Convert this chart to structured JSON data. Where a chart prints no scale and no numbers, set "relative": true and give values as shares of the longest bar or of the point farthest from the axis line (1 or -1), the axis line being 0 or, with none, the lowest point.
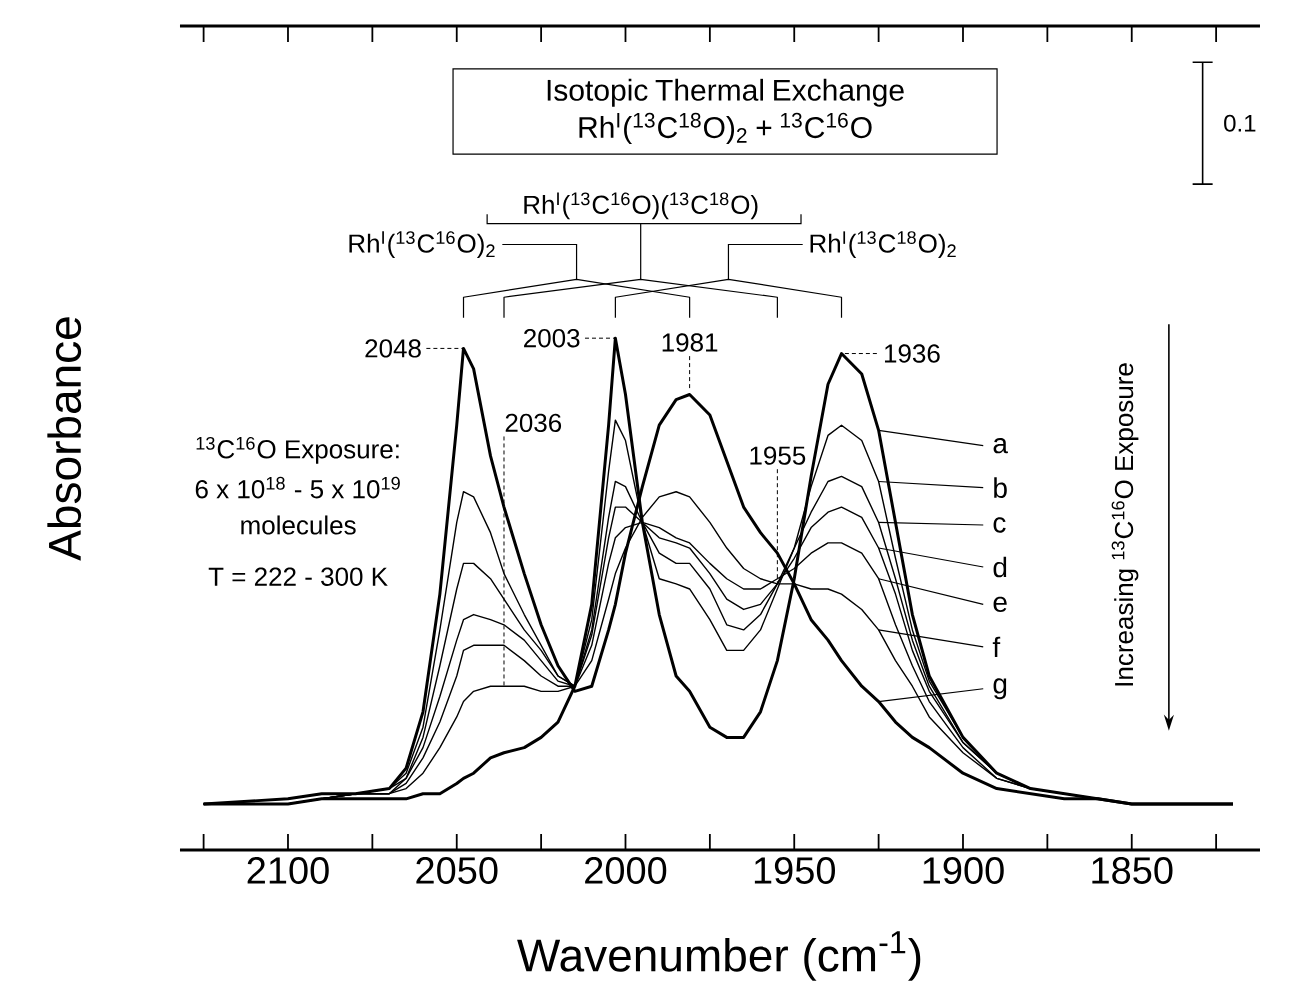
{
  "chart_data": {
    "type": "line",
    "relative": true,
    "legend": "right",
    "xlabel": "Wavenumber (cm$^{-1}$)",
    "ylabel": "Absorbance",
    "xlim": [
      2132,
      1812
    ],
    "xticks": [
      {
        "value": 2125,
        "label": null
      },
      2100,
      {
        "value": 2075,
        "label": null
      },
      2050,
      {
        "value": 2025,
        "label": null
      },
      2000,
      {
        "value": 1975,
        "label": null
      },
      1950,
      {
        "value": 1925,
        "label": null
      },
      1900,
      {
        "value": 1875,
        "label": null
      },
      1850,
      {
        "value": 1825,
        "label": null
      }
    ],
    "x": [
      2125,
      2100,
      2090,
      2080,
      2070,
      2065,
      2060,
      2055,
      2050,
      2048,
      2045,
      2040,
      2036,
      2030,
      2025,
      2020,
      2015,
      2010,
      2005,
      2003,
      2000,
      1995,
      1990,
      1985,
      1981,
      1975,
      1970,
      1965,
      1960,
      1955,
      1950,
      1945,
      1940,
      1936,
      1930,
      1925,
      1920,
      1915,
      1910,
      1900,
      1890,
      1880,
      1870,
      1860,
      1850,
      1820
    ],
    "series": [
      {
        "name": "a",
        "color": "#000000",
        "values": [
          0.09,
          0.09,
          0.1,
          0.1,
          0.1,
          0.1,
          0.11,
          0.11,
          0.13,
          0.14,
          0.15,
          0.18,
          0.19,
          0.2,
          0.22,
          0.25,
          0.32,
          0.48,
          0.83,
          1.0,
          0.89,
          0.64,
          0.46,
          0.34,
          0.31,
          0.24,
          0.22,
          0.22,
          0.27,
          0.37,
          0.53,
          0.73,
          0.91,
          0.97,
          0.93,
          0.82,
          0.64,
          0.46,
          0.34,
          0.22,
          0.15,
          0.12,
          0.11,
          0.1,
          0.09,
          0.09
        ]
      },
      {
        "name": "b",
        "color": "#000000",
        "values": [
          0.09,
          0.09,
          0.1,
          0.11,
          0.11,
          0.12,
          0.15,
          0.2,
          0.26,
          0.29,
          0.31,
          0.32,
          0.32,
          0.32,
          0.31,
          0.31,
          0.32,
          0.45,
          0.74,
          0.84,
          0.8,
          0.64,
          0.53,
          0.52,
          0.51,
          0.45,
          0.39,
          0.39,
          0.43,
          0.51,
          0.59,
          0.71,
          0.81,
          0.83,
          0.8,
          0.72,
          0.57,
          0.43,
          0.33,
          0.22,
          0.15,
          0.12,
          0.11,
          0.1,
          0.09,
          0.09
        ]
      },
      {
        "name": "c",
        "color": "#000000",
        "values": [
          0.09,
          0.09,
          0.1,
          0.11,
          0.11,
          0.13,
          0.18,
          0.25,
          0.34,
          0.39,
          0.4,
          0.4,
          0.4,
          0.37,
          0.34,
          0.32,
          0.32,
          0.43,
          0.65,
          0.72,
          0.71,
          0.64,
          0.58,
          0.56,
          0.56,
          0.51,
          0.44,
          0.43,
          0.46,
          0.52,
          0.59,
          0.66,
          0.72,
          0.73,
          0.71,
          0.64,
          0.53,
          0.41,
          0.32,
          0.21,
          0.15,
          0.12,
          0.11,
          0.1,
          0.09,
          0.09
        ]
      },
      {
        "name": "d",
        "color": "#000000",
        "values": [
          0.09,
          0.09,
          0.1,
          0.11,
          0.11,
          0.14,
          0.2,
          0.3,
          0.41,
          0.45,
          0.46,
          0.45,
          0.44,
          0.41,
          0.37,
          0.33,
          0.32,
          0.42,
          0.61,
          0.67,
          0.67,
          0.64,
          0.61,
          0.6,
          0.59,
          0.54,
          0.49,
          0.47,
          0.48,
          0.52,
          0.57,
          0.63,
          0.66,
          0.67,
          0.65,
          0.59,
          0.5,
          0.39,
          0.31,
          0.21,
          0.15,
          0.12,
          0.11,
          0.1,
          0.09,
          0.09
        ]
      },
      {
        "name": "e",
        "color": "#000000",
        "values": [
          0.09,
          0.09,
          0.1,
          0.11,
          0.12,
          0.14,
          0.22,
          0.36,
          0.51,
          0.56,
          0.56,
          0.53,
          0.49,
          0.43,
          0.39,
          0.34,
          0.32,
          0.4,
          0.56,
          0.61,
          0.63,
          0.64,
          0.63,
          0.61,
          0.6,
          0.56,
          0.53,
          0.51,
          0.51,
          0.53,
          0.55,
          0.58,
          0.6,
          0.6,
          0.58,
          0.53,
          0.44,
          0.36,
          0.29,
          0.2,
          0.14,
          0.12,
          0.11,
          0.1,
          0.09,
          0.09
        ]
      },
      {
        "name": "f",
        "color": "#000000",
        "values": [
          0.09,
          0.09,
          0.1,
          0.11,
          0.12,
          0.15,
          0.24,
          0.43,
          0.64,
          0.7,
          0.69,
          0.62,
          0.54,
          0.46,
          0.4,
          0.34,
          0.32,
          0.37,
          0.49,
          0.54,
          0.59,
          0.65,
          0.69,
          0.7,
          0.69,
          0.64,
          0.59,
          0.55,
          0.53,
          0.52,
          0.52,
          0.51,
          0.51,
          0.5,
          0.47,
          0.43,
          0.37,
          0.32,
          0.26,
          0.19,
          0.14,
          0.12,
          0.11,
          0.1,
          0.09,
          0.09
        ]
      },
      {
        "name": "g",
        "color": "#000000",
        "values": [
          0.09,
          0.1,
          0.11,
          0.11,
          0.12,
          0.16,
          0.27,
          0.5,
          0.83,
          0.98,
          0.94,
          0.77,
          0.67,
          0.54,
          0.44,
          0.36,
          0.31,
          0.32,
          0.43,
          0.48,
          0.58,
          0.71,
          0.83,
          0.88,
          0.89,
          0.85,
          0.76,
          0.67,
          0.62,
          0.58,
          0.52,
          0.45,
          0.41,
          0.37,
          0.32,
          0.29,
          0.25,
          0.22,
          0.2,
          0.15,
          0.12,
          0.11,
          0.1,
          0.1,
          0.09,
          0.09
        ]
      }
    ],
    "annotations": [
      "Isotopic Thermal Exchange",
      "Rh$^{I}$($^{13}$C$^{18}$O)$_{2}$ + $^{13}$C$^{16}$O",
      "0.1",
      "Rh$^{I}$($^{13}$C$^{16}$O)($^{13}$C$^{18}$O)",
      "Rh$^{I}$($^{13}$C$^{16}$O)$_{2}$",
      "Rh$^{I}$($^{13}$C$^{18}$O)$_{2}$",
      {
        "text": "2048",
        "x": 2048,
        "y": 0.98
      },
      {
        "text": "2036",
        "x": 2036,
        "y": 0.32
      },
      {
        "text": "2003",
        "x": 2003,
        "y": 1.0
      },
      {
        "text": "1981",
        "x": 1981,
        "y": 0.89
      },
      {
        "text": "1955",
        "x": 1955,
        "y": 0.52
      },
      {
        "text": "1936",
        "x": 1936,
        "y": 0.97
      },
      "$^{13}$C$^{16}$O Exposure:",
      "6 x 10$^{18}$ - 5 x 10$^{19}$",
      "molecules",
      "T = 222 - 300 K",
      "Increasing $^{13}$C$^{16}$O Exposure"
    ]
  }
}
